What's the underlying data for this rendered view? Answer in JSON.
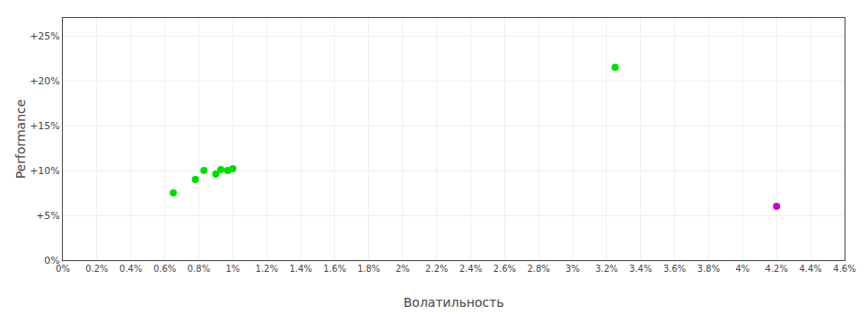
{
  "chart_data": {
    "type": "scatter",
    "xlabel": "Волатильность",
    "ylabel": "Performance",
    "series": [
      {
        "color": "#00dd00",
        "x": [
          0.0065,
          0.0078,
          0.0083,
          0.009,
          0.0093,
          0.0097,
          0.01,
          0.0325
        ],
        "values": [
          0.075,
          0.09,
          0.1,
          0.096,
          0.101,
          0.1,
          0.102,
          0.215
        ]
      },
      {
        "color": "#cc00cc",
        "x": [
          0.042
        ],
        "values": [
          0.06
        ]
      }
    ],
    "xlim": [
      0.0,
      0.046
    ],
    "ylim": [
      0.0,
      0.27
    ],
    "xticks": [
      {
        "value": 0.0,
        "label": "0%"
      },
      {
        "value": 0.002,
        "label": "0.2%"
      },
      {
        "value": 0.004,
        "label": "0.4%"
      },
      {
        "value": 0.006,
        "label": "0.6%"
      },
      {
        "value": 0.008,
        "label": "0.8%"
      },
      {
        "value": 0.01,
        "label": "1%"
      },
      {
        "value": 0.012,
        "label": "1.2%"
      },
      {
        "value": 0.014,
        "label": "1.4%"
      },
      {
        "value": 0.016,
        "label": "1.6%"
      },
      {
        "value": 0.018,
        "label": "1.8%"
      },
      {
        "value": 0.02,
        "label": "2%"
      },
      {
        "value": 0.022,
        "label": "2.2%"
      },
      {
        "value": 0.024,
        "label": "2.4%"
      },
      {
        "value": 0.026,
        "label": "2.6%"
      },
      {
        "value": 0.028,
        "label": "2.8%"
      },
      {
        "value": 0.03,
        "label": "3%"
      },
      {
        "value": 0.032,
        "label": "3.2%"
      },
      {
        "value": 0.034,
        "label": "3.4%"
      },
      {
        "value": 0.036,
        "label": "3.6%"
      },
      {
        "value": 0.038,
        "label": "3.8%"
      },
      {
        "value": 0.04,
        "label": "4%"
      },
      {
        "value": 0.042,
        "label": "4.2%"
      },
      {
        "value": 0.044,
        "label": "4.4%"
      },
      {
        "value": 0.046,
        "label": "4.6%"
      }
    ],
    "yticks": [
      {
        "value": 0.0,
        "label": "0%"
      },
      {
        "value": 0.05,
        "label": "+5%"
      },
      {
        "value": 0.1,
        "label": "+10%"
      },
      {
        "value": 0.15,
        "label": "+15%"
      },
      {
        "value": 0.2,
        "label": "+20%"
      },
      {
        "value": 0.25,
        "label": "+25%"
      }
    ],
    "grid": true
  }
}
